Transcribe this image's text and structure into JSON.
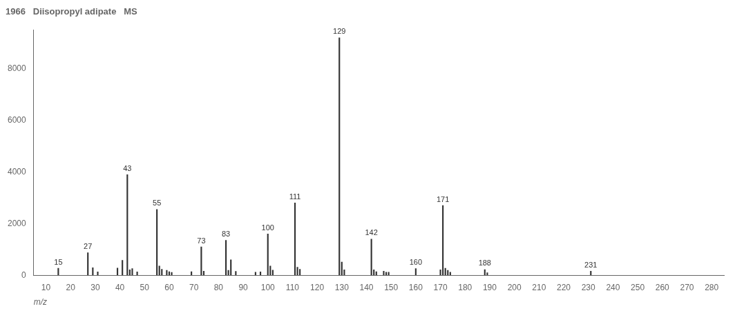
{
  "chart_data": {
    "type": "bar",
    "title": "1966   Diisopropyl adipate   MS",
    "xlabel": "m/z",
    "x": [
      15,
      27,
      29,
      31,
      39,
      41,
      43,
      44,
      45,
      47,
      55,
      56,
      57,
      59,
      60,
      61,
      69,
      73,
      74,
      83,
      84,
      85,
      87,
      95,
      97,
      100,
      101,
      102,
      111,
      112,
      113,
      129,
      130,
      131,
      142,
      143,
      144,
      147,
      148,
      149,
      160,
      170,
      171,
      172,
      173,
      174,
      188,
      189,
      231
    ],
    "values": [
      270,
      870,
      290,
      130,
      280,
      580,
      3900,
      210,
      260,
      130,
      2550,
      360,
      230,
      190,
      140,
      110,
      140,
      1100,
      160,
      1350,
      190,
      600,
      150,
      120,
      130,
      1600,
      360,
      200,
      2800,
      310,
      230,
      9200,
      510,
      210,
      1400,
      210,
      140,
      160,
      120,
      120,
      260,
      210,
      2700,
      270,
      190,
      120,
      220,
      100,
      160
    ],
    "annotations": [
      {
        "x": 15,
        "y": 270,
        "text": "15"
      },
      {
        "x": 27,
        "y": 870,
        "text": "27"
      },
      {
        "x": 43,
        "y": 3900,
        "text": "43"
      },
      {
        "x": 55,
        "y": 2550,
        "text": "55"
      },
      {
        "x": 73,
        "y": 1100,
        "text": "73"
      },
      {
        "x": 83,
        "y": 1350,
        "text": "83"
      },
      {
        "x": 100,
        "y": 1600,
        "text": "100"
      },
      {
        "x": 111,
        "y": 2800,
        "text": "111"
      },
      {
        "x": 129,
        "y": 9200,
        "text": "129"
      },
      {
        "x": 142,
        "y": 1400,
        "text": "142"
      },
      {
        "x": 160,
        "y": 260,
        "text": "160"
      },
      {
        "x": 171,
        "y": 2700,
        "text": "171"
      },
      {
        "x": 188,
        "y": 220,
        "text": "188"
      },
      {
        "x": 231,
        "y": 160,
        "text": "231"
      }
    ],
    "color": "#333333",
    "xlim": [
      5,
      285
    ],
    "xticks": [
      10,
      20,
      30,
      40,
      50,
      60,
      70,
      80,
      90,
      100,
      110,
      120,
      130,
      140,
      150,
      160,
      170,
      180,
      190,
      200,
      210,
      220,
      230,
      240,
      250,
      260,
      270,
      280
    ],
    "ylim": [
      0,
      9500
    ],
    "yticks": [
      0,
      2000,
      4000,
      6000,
      8000
    ],
    "grid": false
  }
}
